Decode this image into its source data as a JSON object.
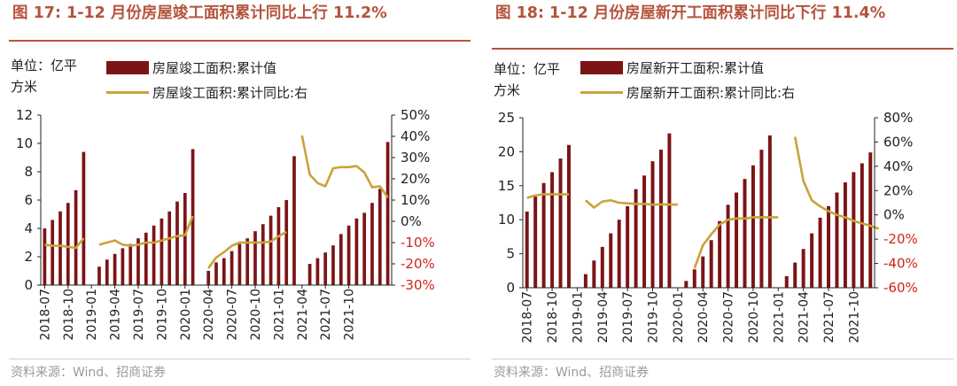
{
  "colors": {
    "bar": "#7b1416",
    "line": "#c9a23a",
    "title": "#b5533c",
    "negative_tick": "#d0231b",
    "axis_text": "#222222"
  },
  "unit_label": "单位：亿平方米",
  "source": "资料来源：Wind、招商证券",
  "chart_data": [
    {
      "type": "bar+line",
      "title": "图 17:  1-12 月份房屋竣工面积累计同比上行 11.2%",
      "legend": [
        "房屋竣工面积:累计值",
        "房屋竣工面积:累计同比:右"
      ],
      "x_tick_labels": [
        "2018-07",
        "2018-10",
        "2019-01",
        "2019-04",
        "2019-07",
        "2019-10",
        "2020-01",
        "2020-04",
        "2020-07",
        "2020-10",
        "2021-01",
        "2021-04",
        "2021-07",
        "2021-10"
      ],
      "left_axis": {
        "min": 0,
        "max": 12,
        "ticks": [
          "0",
          "2",
          "4",
          "6",
          "8",
          "10",
          "12"
        ]
      },
      "right_axis": {
        "min": -30,
        "max": 50,
        "ticks": [
          "-30%",
          "-20%",
          "-10%",
          "0%",
          "10%",
          "20%",
          "30%",
          "40%",
          "50%"
        ]
      },
      "series": [
        {
          "name": "房屋竣工面积:累计值",
          "axis": "left",
          "values": [
            4.0,
            4.6,
            5.2,
            5.8,
            6.7,
            9.4,
            null,
            1.3,
            1.8,
            2.2,
            2.6,
            2.9,
            3.3,
            3.7,
            4.2,
            4.7,
            5.2,
            5.9,
            6.5,
            9.6,
            null,
            1.0,
            1.6,
            1.9,
            2.4,
            2.9,
            3.3,
            3.8,
            4.3,
            4.9,
            5.5,
            6.0,
            9.1,
            null,
            1.5,
            1.9,
            2.3,
            2.8,
            3.6,
            4.2,
            4.7,
            5.1,
            5.8,
            6.8,
            10.1
          ]
        },
        {
          "name": "房屋竣工面积:累计同比:右",
          "axis": "right",
          "values": [
            -11,
            -11.5,
            -11.5,
            -12,
            -12.5,
            -8,
            null,
            -11,
            -10,
            -9,
            -11,
            -11.5,
            -11,
            -10,
            -10,
            -9,
            -8,
            -7,
            -6.5,
            2.5,
            null,
            -22,
            -17,
            -14.5,
            -11.5,
            -10,
            -10,
            -10,
            -10,
            -9.5,
            -7,
            -5,
            null,
            40.4,
            22,
            18,
            16.5,
            25,
            25.5,
            25.5,
            26,
            23,
            16,
            16.5,
            11.2
          ]
        }
      ]
    },
    {
      "type": "bar+line",
      "title": "图 18:  1-12 月份房屋新开工面积累计同比下行 11.4%",
      "legend": [
        "房屋新开工面积:累计值",
        "房屋新开工面积:累计同比:右"
      ],
      "x_tick_labels": [
        "2018-07",
        "2018-10",
        "2019-01",
        "2019-04",
        "2019-07",
        "2019-10",
        "2020-01",
        "2020-04",
        "2020-07",
        "2020-10",
        "2021-01",
        "2021-04",
        "2021-07",
        "2021-10"
      ],
      "left_axis": {
        "min": 0,
        "max": 25,
        "ticks": [
          "0",
          "5",
          "10",
          "15",
          "20",
          "25"
        ]
      },
      "right_axis": {
        "min": -60,
        "max": 80,
        "ticks": [
          "-60%",
          "-40%",
          "-20%",
          "0%",
          "20%",
          "40%",
          "60%",
          "80%"
        ]
      },
      "series": [
        {
          "name": "房屋新开工面积:累计值",
          "axis": "left",
          "values": [
            11.2,
            13.4,
            15.4,
            17.0,
            19.0,
            21.0,
            null,
            2.0,
            4.0,
            6.0,
            8.0,
            10.0,
            12.0,
            14.5,
            16.5,
            18.6,
            20.3,
            22.7,
            null,
            1.0,
            2.7,
            4.6,
            7.0,
            9.8,
            12.2,
            14.0,
            16.0,
            18.0,
            20.3,
            22.4,
            null,
            1.7,
            3.7,
            5.7,
            8.0,
            10.3,
            12.0,
            14.0,
            15.5,
            17.0,
            18.3,
            19.9
          ]
        },
        {
          "name": "房屋新开工面积:累计同比:右",
          "axis": "right",
          "values": [
            14,
            16,
            17,
            17,
            17,
            17,
            null,
            12,
            6,
            11,
            12,
            10,
            9.5,
            9,
            9,
            8.5,
            8.7,
            8.5,
            8.5,
            null,
            -44,
            -25,
            -16,
            -8,
            -4,
            -3,
            -3,
            -2,
            -2,
            -2,
            -2,
            null,
            64.3,
            28,
            12,
            7,
            3,
            0,
            -2,
            -5,
            -7,
            -9,
            -11.4
          ]
        }
      ]
    }
  ]
}
